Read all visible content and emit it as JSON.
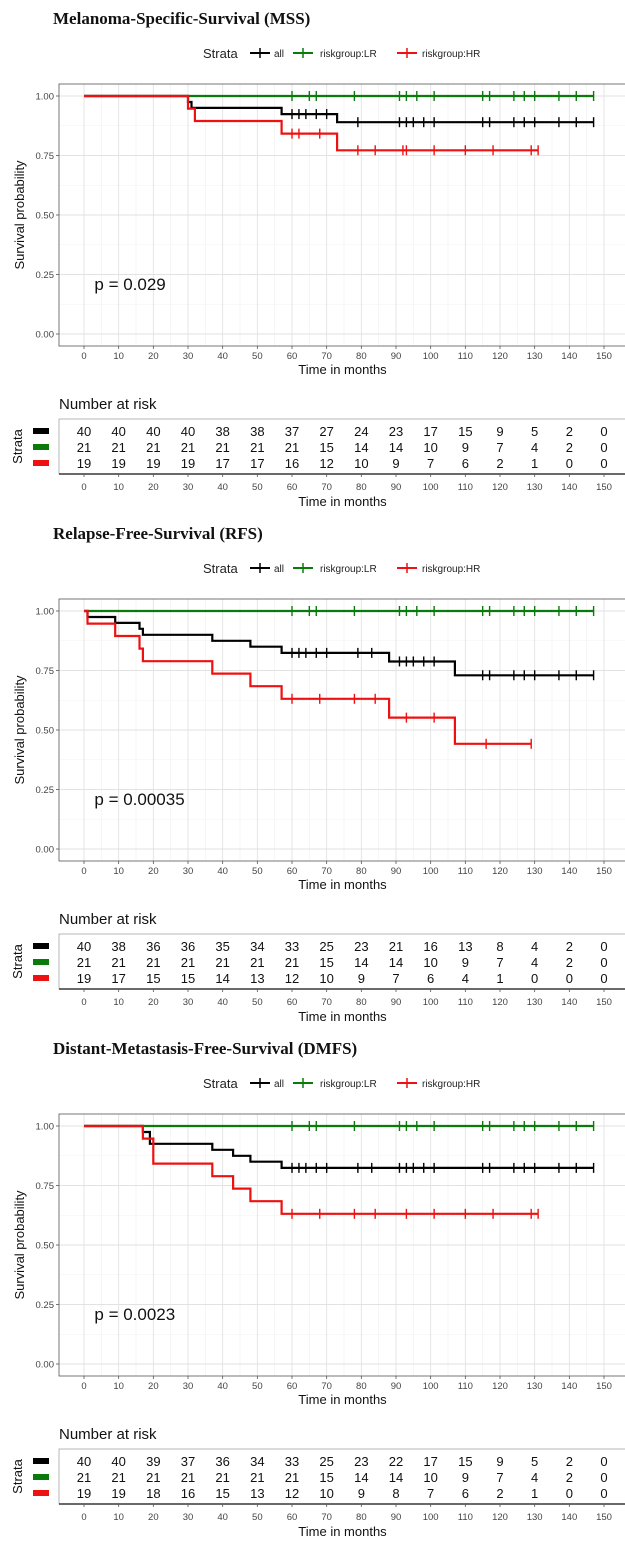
{
  "chart_data": [
    {
      "type": "line",
      "title": "Melanoma-Specific-Survival (MSS)",
      "legend_title": "Strata",
      "legend_position": "top",
      "xlabel": "Time in months",
      "ylabel": "Survival probability",
      "xlim": [
        0,
        150
      ],
      "ylim": [
        0,
        1
      ],
      "x_ticks": [
        "0",
        "10",
        "20",
        "30",
        "40",
        "50",
        "60",
        "70",
        "80",
        "90",
        "100",
        "110",
        "120",
        "130",
        "140",
        "150"
      ],
      "y_ticks": [
        "0.00",
        "0.25",
        "0.50",
        "0.75",
        "1.00"
      ],
      "grid": true,
      "p_value_text": "p = 0.029",
      "series": [
        {
          "name": "all",
          "color": "#000000",
          "steps": [
            [
              0,
              1.0
            ],
            [
              30,
              1.0
            ],
            [
              30,
              0.975
            ],
            [
              31,
              0.975
            ],
            [
              31,
              0.95
            ],
            [
              57,
              0.95
            ],
            [
              57,
              0.924
            ],
            [
              73,
              0.924
            ],
            [
              73,
              0.89
            ],
            [
              147,
              0.89
            ]
          ],
          "censors": [
            60,
            62,
            64,
            67,
            70,
            79,
            91,
            93,
            95,
            98,
            101,
            115,
            117,
            124,
            127,
            130,
            137,
            142,
            147
          ]
        },
        {
          "name": "riskgroup:LR",
          "color": "#0a7a0a",
          "steps": [
            [
              0,
              1.0
            ],
            [
              147,
              1.0
            ]
          ],
          "censors": [
            60,
            65,
            67,
            78,
            91,
            93,
            96,
            101,
            115,
            117,
            124,
            127,
            130,
            137,
            142,
            147
          ]
        },
        {
          "name": "riskgroup:HR",
          "color": "#ee1111",
          "steps": [
            [
              0,
              1.0
            ],
            [
              30,
              1.0
            ],
            [
              30,
              0.947
            ],
            [
              32,
              0.947
            ],
            [
              32,
              0.895
            ],
            [
              57,
              0.895
            ],
            [
              57,
              0.842
            ],
            [
              73,
              0.842
            ],
            [
              73,
              0.772
            ],
            [
              131,
              0.772
            ]
          ],
          "censors": [
            60,
            62,
            68,
            79,
            84,
            92,
            93,
            101,
            110,
            118,
            129,
            131
          ]
        }
      ],
      "risk_table": {
        "title": "Number at risk",
        "ylabel": "Strata",
        "xlabel": "Time in months",
        "rows": [
          [
            "40",
            "40",
            "40",
            "40",
            "38",
            "38",
            "37",
            "27",
            "24",
            "23",
            "17",
            "15",
            "9",
            "5",
            "2",
            "0"
          ],
          [
            "21",
            "21",
            "21",
            "21",
            "21",
            "21",
            "21",
            "15",
            "14",
            "14",
            "10",
            "9",
            "7",
            "4",
            "2",
            "0"
          ],
          [
            "19",
            "19",
            "19",
            "19",
            "17",
            "17",
            "16",
            "12",
            "10",
            "9",
            "7",
            "6",
            "2",
            "1",
            "0",
            "0"
          ]
        ]
      }
    },
    {
      "type": "line",
      "title": "Relapse-Free-Survival (RFS)",
      "legend_title": "Strata",
      "legend_position": "top",
      "xlabel": "Time in months",
      "ylabel": "Survival probability",
      "xlim": [
        0,
        150
      ],
      "ylim": [
        0,
        1
      ],
      "x_ticks": [
        "0",
        "10",
        "20",
        "30",
        "40",
        "50",
        "60",
        "70",
        "80",
        "90",
        "100",
        "110",
        "120",
        "130",
        "140",
        "150"
      ],
      "y_ticks": [
        "0.00",
        "0.25",
        "0.50",
        "0.75",
        "1.00"
      ],
      "grid": true,
      "p_value_text": "p = 0.00035",
      "series": [
        {
          "name": "all",
          "color": "#000000",
          "steps": [
            [
              0,
              1.0
            ],
            [
              1,
              1.0
            ],
            [
              1,
              0.975
            ],
            [
              9,
              0.975
            ],
            [
              9,
              0.95
            ],
            [
              16,
              0.95
            ],
            [
              16,
              0.925
            ],
            [
              17,
              0.925
            ],
            [
              17,
              0.9
            ],
            [
              37,
              0.9
            ],
            [
              37,
              0.875
            ],
            [
              48,
              0.875
            ],
            [
              48,
              0.85
            ],
            [
              57,
              0.85
            ],
            [
              57,
              0.824
            ],
            [
              88,
              0.824
            ],
            [
              88,
              0.788
            ],
            [
              107,
              0.788
            ],
            [
              107,
              0.73
            ],
            [
              147,
              0.73
            ]
          ],
          "censors": [
            60,
            62,
            64,
            67,
            70,
            79,
            83,
            91,
            93,
            95,
            98,
            101,
            115,
            117,
            124,
            127,
            130,
            137,
            142,
            147
          ]
        },
        {
          "name": "riskgroup:LR",
          "color": "#0a7a0a",
          "steps": [
            [
              0,
              1.0
            ],
            [
              147,
              1.0
            ]
          ],
          "censors": [
            60,
            65,
            67,
            78,
            91,
            93,
            96,
            101,
            115,
            117,
            124,
            127,
            130,
            137,
            142,
            147
          ]
        },
        {
          "name": "riskgroup:HR",
          "color": "#ee1111",
          "steps": [
            [
              0,
              1.0
            ],
            [
              1,
              1.0
            ],
            [
              1,
              0.947
            ],
            [
              9,
              0.947
            ],
            [
              9,
              0.895
            ],
            [
              16,
              0.895
            ],
            [
              16,
              0.842
            ],
            [
              17,
              0.842
            ],
            [
              17,
              0.789
            ],
            [
              37,
              0.789
            ],
            [
              37,
              0.737
            ],
            [
              48,
              0.737
            ],
            [
              48,
              0.684
            ],
            [
              57,
              0.684
            ],
            [
              57,
              0.631
            ],
            [
              88,
              0.631
            ],
            [
              88,
              0.552
            ],
            [
              107,
              0.552
            ],
            [
              107,
              0.442
            ],
            [
              129,
              0.442
            ]
          ],
          "censors": [
            60,
            68,
            78,
            84,
            93,
            101,
            116,
            129
          ]
        }
      ],
      "risk_table": {
        "title": "Number at risk",
        "ylabel": "Strata",
        "xlabel": "Time in months",
        "rows": [
          [
            "40",
            "38",
            "36",
            "36",
            "35",
            "34",
            "33",
            "25",
            "23",
            "21",
            "16",
            "13",
            "8",
            "4",
            "2",
            "0"
          ],
          [
            "21",
            "21",
            "21",
            "21",
            "21",
            "21",
            "21",
            "15",
            "14",
            "14",
            "10",
            "9",
            "7",
            "4",
            "2",
            "0"
          ],
          [
            "19",
            "17",
            "15",
            "15",
            "14",
            "13",
            "12",
            "10",
            "9",
            "7",
            "6",
            "4",
            "1",
            "0",
            "0",
            "0"
          ]
        ]
      }
    },
    {
      "type": "line",
      "title": "Distant-Metastasis-Free-Survival (DMFS)",
      "legend_title": "Strata",
      "legend_position": "top",
      "xlabel": "Time in months",
      "ylabel": "Survival probability",
      "xlim": [
        0,
        150
      ],
      "ylim": [
        0,
        1
      ],
      "x_ticks": [
        "0",
        "10",
        "20",
        "30",
        "40",
        "50",
        "60",
        "70",
        "80",
        "90",
        "100",
        "110",
        "120",
        "130",
        "140",
        "150"
      ],
      "y_ticks": [
        "0.00",
        "0.25",
        "0.50",
        "0.75",
        "1.00"
      ],
      "grid": true,
      "p_value_text": "p = 0.0023",
      "series": [
        {
          "name": "all",
          "color": "#000000",
          "steps": [
            [
              0,
              1.0
            ],
            [
              17,
              1.0
            ],
            [
              17,
              0.975
            ],
            [
              19,
              0.975
            ],
            [
              19,
              0.925
            ],
            [
              37,
              0.925
            ],
            [
              37,
              0.9
            ],
            [
              43,
              0.9
            ],
            [
              43,
              0.875
            ],
            [
              48,
              0.875
            ],
            [
              48,
              0.85
            ],
            [
              57,
              0.85
            ],
            [
              57,
              0.824
            ],
            [
              147,
              0.824
            ]
          ],
          "censors": [
            60,
            62,
            64,
            67,
            70,
            79,
            83,
            91,
            93,
            95,
            98,
            101,
            115,
            117,
            124,
            127,
            130,
            137,
            142,
            147
          ]
        },
        {
          "name": "riskgroup:LR",
          "color": "#0a7a0a",
          "steps": [
            [
              0,
              1.0
            ],
            [
              147,
              1.0
            ]
          ],
          "censors": [
            60,
            65,
            67,
            78,
            91,
            93,
            96,
            101,
            115,
            117,
            124,
            127,
            130,
            137,
            142,
            147
          ]
        },
        {
          "name": "riskgroup:HR",
          "color": "#ee1111",
          "steps": [
            [
              0,
              1.0
            ],
            [
              17,
              1.0
            ],
            [
              17,
              0.947
            ],
            [
              20,
              0.947
            ],
            [
              20,
              0.842
            ],
            [
              37,
              0.842
            ],
            [
              37,
              0.789
            ],
            [
              43,
              0.789
            ],
            [
              43,
              0.737
            ],
            [
              48,
              0.737
            ],
            [
              48,
              0.684
            ],
            [
              57,
              0.684
            ],
            [
              57,
              0.631
            ],
            [
              131,
              0.631
            ]
          ],
          "censors": [
            60,
            68,
            78,
            84,
            93,
            101,
            110,
            118,
            129,
            131
          ]
        }
      ],
      "risk_table": {
        "title": "Number at risk",
        "ylabel": "Strata",
        "xlabel": "Time in months",
        "rows": [
          [
            "40",
            "40",
            "39",
            "37",
            "36",
            "34",
            "33",
            "25",
            "23",
            "22",
            "17",
            "15",
            "9",
            "5",
            "2",
            "0"
          ],
          [
            "21",
            "21",
            "21",
            "21",
            "21",
            "21",
            "21",
            "15",
            "14",
            "14",
            "10",
            "9",
            "7",
            "4",
            "2",
            "0"
          ],
          [
            "19",
            "19",
            "18",
            "16",
            "15",
            "13",
            "12",
            "10",
            "9",
            "8",
            "7",
            "6",
            "2",
            "1",
            "0",
            "0"
          ]
        ]
      }
    }
  ]
}
